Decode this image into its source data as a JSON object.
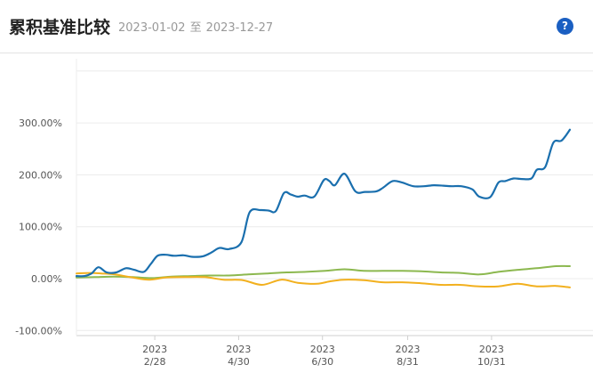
{
  "header": {
    "title": "累积基准比较",
    "start_date": "2023-01-02",
    "range_separator": "至",
    "end_date": "2023-12-27",
    "help_label": "?"
  },
  "chart_data": {
    "type": "line",
    "title": "",
    "xlabel": "",
    "ylabel": "",
    "ylim": [
      -100,
      320
    ],
    "y_ticks": [
      {
        "value": 300,
        "label": "300.00%"
      },
      {
        "value": 200,
        "label": "200.00%"
      },
      {
        "value": 100,
        "label": "100.00%"
      },
      {
        "value": 0,
        "label": "0.00%"
      },
      {
        "value": -100,
        "label": "-100.00%"
      }
    ],
    "x_range": [
      "2023-01-02",
      "2023-12-27"
    ],
    "x_ticks": [
      {
        "date": "2023-02-28",
        "year": "2023",
        "label": "2/28"
      },
      {
        "date": "2023-04-30",
        "year": "2023",
        "label": "4/30"
      },
      {
        "date": "2023-06-30",
        "year": "2023",
        "label": "6/30"
      },
      {
        "date": "2023-08-31",
        "year": "2023",
        "label": "8/31"
      },
      {
        "date": "2023-10-31",
        "year": "2023",
        "label": "10/31"
      }
    ],
    "grid": true,
    "legend": "none",
    "series": [
      {
        "color": "#1a6fae",
        "points": [
          [
            "2023-01-02",
            5
          ],
          [
            "2023-01-08",
            5
          ],
          [
            "2023-01-13",
            10
          ],
          [
            "2023-01-18",
            22
          ],
          [
            "2023-01-24",
            12
          ],
          [
            "2023-01-31",
            12
          ],
          [
            "2023-02-07",
            20
          ],
          [
            "2023-02-13",
            17
          ],
          [
            "2023-02-20",
            13
          ],
          [
            "2023-02-25",
            28
          ],
          [
            "2023-03-02",
            44
          ],
          [
            "2023-03-08",
            46
          ],
          [
            "2023-03-14",
            44
          ],
          [
            "2023-03-21",
            45
          ],
          [
            "2023-03-27",
            42
          ],
          [
            "2023-04-04",
            43
          ],
          [
            "2023-04-10",
            50
          ],
          [
            "2023-04-16",
            59
          ],
          [
            "2023-04-23",
            57
          ],
          [
            "2023-05-02",
            70
          ],
          [
            "2023-05-08",
            128
          ],
          [
            "2023-05-16",
            132
          ],
          [
            "2023-05-22",
            131
          ],
          [
            "2023-05-27",
            130
          ],
          [
            "2023-06-02",
            165
          ],
          [
            "2023-06-07",
            162
          ],
          [
            "2023-06-12",
            158
          ],
          [
            "2023-06-17",
            160
          ],
          [
            "2023-06-24",
            158
          ],
          [
            "2023-07-01",
            190
          ],
          [
            "2023-07-05",
            188
          ],
          [
            "2023-07-09",
            180
          ],
          [
            "2023-07-16",
            202
          ],
          [
            "2023-07-24",
            168
          ],
          [
            "2023-07-31",
            167
          ],
          [
            "2023-08-08",
            168
          ],
          [
            "2023-08-13",
            175
          ],
          [
            "2023-08-20",
            188
          ],
          [
            "2023-08-27",
            185
          ],
          [
            "2023-09-04",
            178
          ],
          [
            "2023-09-12",
            178
          ],
          [
            "2023-09-19",
            180
          ],
          [
            "2023-09-26",
            179
          ],
          [
            "2023-10-02",
            178
          ],
          [
            "2023-10-09",
            178
          ],
          [
            "2023-10-17",
            172
          ],
          [
            "2023-10-22",
            158
          ],
          [
            "2023-10-30",
            157
          ],
          [
            "2023-11-05",
            185
          ],
          [
            "2023-11-10",
            188
          ],
          [
            "2023-11-16",
            193
          ],
          [
            "2023-11-22",
            192
          ],
          [
            "2023-11-29",
            193
          ],
          [
            "2023-12-03",
            210
          ],
          [
            "2023-12-09",
            215
          ],
          [
            "2023-12-15",
            262
          ],
          [
            "2023-12-21",
            266
          ],
          [
            "2023-12-27",
            287
          ]
        ]
      },
      {
        "color": "#8cb84f",
        "points": [
          [
            "2023-01-02",
            2
          ],
          [
            "2023-01-15",
            3
          ],
          [
            "2023-01-29",
            4
          ],
          [
            "2023-02-12",
            3
          ],
          [
            "2023-02-26",
            1
          ],
          [
            "2023-03-12",
            4
          ],
          [
            "2023-03-26",
            5
          ],
          [
            "2023-04-09",
            6
          ],
          [
            "2023-04-23",
            6
          ],
          [
            "2023-05-07",
            8
          ],
          [
            "2023-05-21",
            10
          ],
          [
            "2023-06-04",
            12
          ],
          [
            "2023-06-18",
            13
          ],
          [
            "2023-07-02",
            15
          ],
          [
            "2023-07-16",
            18
          ],
          [
            "2023-07-30",
            15
          ],
          [
            "2023-08-13",
            15
          ],
          [
            "2023-08-27",
            15
          ],
          [
            "2023-09-10",
            14
          ],
          [
            "2023-09-24",
            12
          ],
          [
            "2023-10-08",
            11
          ],
          [
            "2023-10-22",
            8
          ],
          [
            "2023-11-05",
            13
          ],
          [
            "2023-11-19",
            17
          ],
          [
            "2023-12-03",
            20
          ],
          [
            "2023-12-17",
            24
          ],
          [
            "2023-12-27",
            24
          ]
        ]
      },
      {
        "color": "#f2b01e",
        "points": [
          [
            "2023-01-02",
            10
          ],
          [
            "2023-01-12",
            11
          ],
          [
            "2023-01-20",
            10
          ],
          [
            "2023-01-30",
            8
          ],
          [
            "2023-02-12",
            2
          ],
          [
            "2023-02-24",
            -2
          ],
          [
            "2023-03-08",
            2
          ],
          [
            "2023-03-22",
            3
          ],
          [
            "2023-04-05",
            3
          ],
          [
            "2023-04-19",
            -2
          ],
          [
            "2023-05-03",
            -3
          ],
          [
            "2023-05-17",
            -12
          ],
          [
            "2023-05-31",
            -2
          ],
          [
            "2023-06-12",
            -8
          ],
          [
            "2023-06-26",
            -10
          ],
          [
            "2023-07-06",
            -5
          ],
          [
            "2023-07-16",
            -2
          ],
          [
            "2023-07-30",
            -3
          ],
          [
            "2023-08-13",
            -7
          ],
          [
            "2023-08-27",
            -7
          ],
          [
            "2023-09-10",
            -9
          ],
          [
            "2023-09-24",
            -12
          ],
          [
            "2023-10-08",
            -12
          ],
          [
            "2023-10-22",
            -15
          ],
          [
            "2023-11-05",
            -15
          ],
          [
            "2023-11-19",
            -10
          ],
          [
            "2023-12-03",
            -15
          ],
          [
            "2023-12-17",
            -14
          ],
          [
            "2023-12-27",
            -17
          ]
        ]
      }
    ]
  }
}
